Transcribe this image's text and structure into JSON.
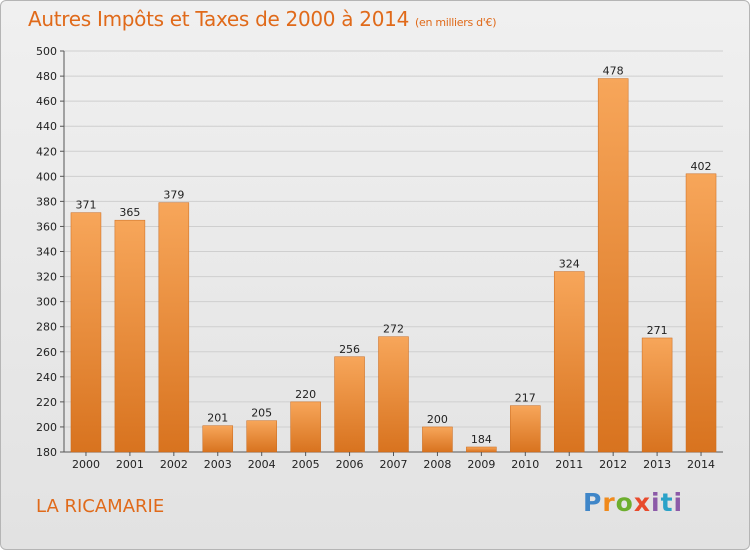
{
  "title": "Autres Impôts et Taxes de 2000 à 2014",
  "subtitle": "(en milliers d'€)",
  "commune": "LA RICAMARIE",
  "logo_text": "Proxiti",
  "colors": {
    "bar_light": "#f7a65a",
    "bar_dark": "#d8731f",
    "accent": "#e06a1a",
    "grid": "#cfcfcf"
  },
  "chart_data": {
    "type": "bar",
    "title": "Autres Impôts et Taxes de 2000 à 2014",
    "subtitle": "(en milliers d'€)",
    "xlabel": "",
    "ylabel": "",
    "categories": [
      "2000",
      "2001",
      "2002",
      "2003",
      "2004",
      "2005",
      "2006",
      "2007",
      "2008",
      "2009",
      "2010",
      "2011",
      "2012",
      "2013",
      "2014"
    ],
    "values": [
      371,
      365,
      379,
      201,
      205,
      220,
      256,
      272,
      200,
      184,
      217,
      324,
      478,
      271,
      402
    ],
    "ylim": [
      180,
      500
    ],
    "yticks": [
      180,
      200,
      220,
      240,
      260,
      280,
      300,
      320,
      340,
      360,
      380,
      400,
      420,
      440,
      460,
      480,
      500
    ],
    "grid": true,
    "data_labels": true
  }
}
